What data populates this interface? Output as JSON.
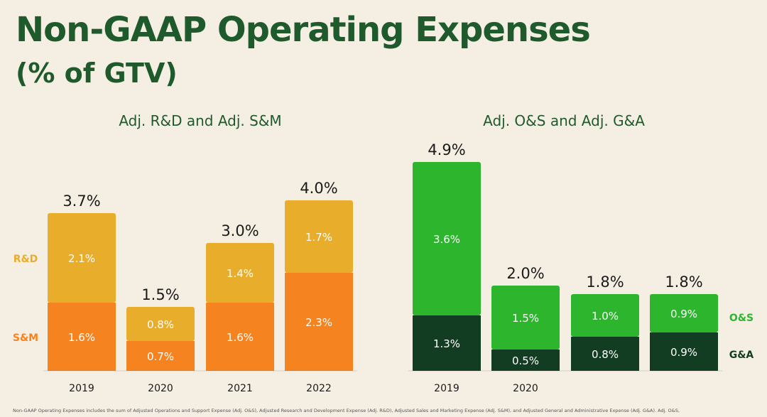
{
  "title": "Non-GAAP Operating Expenses",
  "subtitle": "(% of GTV)",
  "footnote": "Non-GAAP Operating Expenses includes the sum of Adjusted Operations and Support Expense (Adj. O&S), Adjusted Research and Development Expense (Adj. R&D), Adjusted Sales and Marketing Expense (Adj. S&M), and Adjusted General and Administrative Expense (Adj. G&A). Adj. O&S,",
  "colors": {
    "background": "#f5efe3",
    "title": "#1f5a2c",
    "rd": "#e9ad2c",
    "sm": "#f5831f",
    "os": "#2db52d",
    "ga": "#133d23"
  },
  "chart_data": [
    {
      "type": "bar",
      "stacked": true,
      "title": "Adj. R&D and Adj. S&M",
      "categories": [
        "2019",
        "2020",
        "2021",
        "2022"
      ],
      "series": [
        {
          "name": "S&M",
          "values": [
            1.6,
            0.7,
            1.6,
            2.3
          ],
          "labels": [
            "1.6%",
            "0.7%",
            "1.6%",
            "2.3%"
          ],
          "color": "#f5831f"
        },
        {
          "name": "R&D",
          "values": [
            2.1,
            0.8,
            1.4,
            1.7
          ],
          "labels": [
            "2.1%",
            "0.8%",
            "1.4%",
            "1.7%"
          ],
          "color": "#e9ad2c"
        }
      ],
      "totals": [
        "3.7%",
        "1.5%",
        "3.0%",
        "4.0%"
      ],
      "total_values": [
        3.7,
        1.5,
        3.0,
        4.0
      ],
      "legend_position": "left"
    },
    {
      "type": "bar",
      "stacked": true,
      "title": "Adj. O&S and Adj. G&A",
      "categories": [
        "2019",
        "2020",
        "",
        ""
      ],
      "series": [
        {
          "name": "G&A",
          "values": [
            1.3,
            0.5,
            0.8,
            0.9
          ],
          "labels": [
            "1.3%",
            "0.5%",
            "0.8%",
            "0.9%"
          ],
          "color": "#133d23"
        },
        {
          "name": "O&S",
          "values": [
            3.6,
            1.5,
            1.0,
            0.9
          ],
          "labels": [
            "3.6%",
            "1.5%",
            "1.0%",
            "0.9%"
          ],
          "color": "#2db52d"
        }
      ],
      "totals": [
        "4.9%",
        "2.0%",
        "1.8%",
        "1.8%"
      ],
      "total_values": [
        4.9,
        2.0,
        1.8,
        1.8
      ],
      "legend_position": "right"
    }
  ]
}
